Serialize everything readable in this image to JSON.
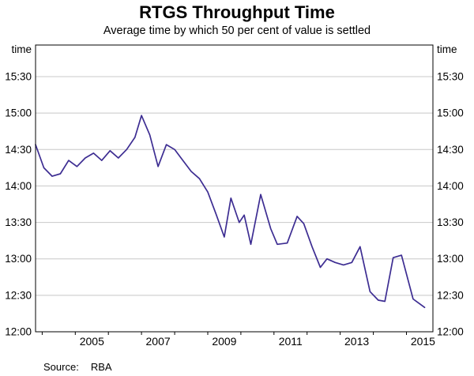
{
  "chart": {
    "title": "RTGS Throughput Time",
    "subtitle": "Average time by which 50 per cent of value is settled"
  },
  "source": {
    "label": "Source:",
    "value": "RBA"
  },
  "colors": {
    "line": "#3d2d92",
    "grid": "#c8c8c8",
    "axis": "#000000",
    "text": "#000000",
    "background": "#ffffff"
  },
  "chart_data": {
    "type": "line",
    "title": "RTGS Throughput Time",
    "subtitle": "Average time by which 50 per cent of value is settled",
    "xlabel": "",
    "ylabel": "time",
    "unit_label": "time",
    "legend": "none",
    "grid": true,
    "y_axis": {
      "min": "12:00",
      "max": "15:56",
      "tick_labels": [
        "15:30",
        "15:00",
        "14:30",
        "14:00",
        "13:30",
        "13:00",
        "12:30",
        "12:00"
      ],
      "label_sides": "both"
    },
    "x_axis": {
      "range": [
        2003.8,
        2015.8
      ],
      "tick_labels": [
        "2005",
        "2007",
        "2009",
        "2011",
        "2013",
        "2015"
      ],
      "tick_years": [
        2004,
        2005,
        2006,
        2007,
        2008,
        2009,
        2010,
        2011,
        2012,
        2013,
        2014,
        2015
      ]
    },
    "series": [
      {
        "name": "Average time by which 50 per cent of RTGS value is settled",
        "color": "#3d2d92",
        "points": [
          [
            2003.8,
            "14:34"
          ],
          [
            2004.05,
            "14:15"
          ],
          [
            2004.3,
            "14:08"
          ],
          [
            2004.55,
            "14:10"
          ],
          [
            2004.8,
            "14:21"
          ],
          [
            2005.05,
            "14:16"
          ],
          [
            2005.3,
            "14:23"
          ],
          [
            2005.55,
            "14:27"
          ],
          [
            2005.8,
            "14:21"
          ],
          [
            2006.05,
            "14:29"
          ],
          [
            2006.3,
            "14:23"
          ],
          [
            2006.55,
            "14:30"
          ],
          [
            2006.8,
            "14:40"
          ],
          [
            2007.0,
            "14:58"
          ],
          [
            2007.25,
            "14:42"
          ],
          [
            2007.5,
            "14:16"
          ],
          [
            2007.75,
            "14:34"
          ],
          [
            2008.0,
            "14:30"
          ],
          [
            2008.25,
            "14:21"
          ],
          [
            2008.5,
            "14:12"
          ],
          [
            2008.75,
            "14:06"
          ],
          [
            2009.0,
            "13:55"
          ],
          [
            2009.25,
            "13:37"
          ],
          [
            2009.5,
            "13:18"
          ],
          [
            2009.7,
            "13:50"
          ],
          [
            2009.95,
            "13:30"
          ],
          [
            2010.1,
            "13:36"
          ],
          [
            2010.3,
            "13:12"
          ],
          [
            2010.6,
            "13:53"
          ],
          [
            2010.9,
            "13:25"
          ],
          [
            2011.1,
            "13:12"
          ],
          [
            2011.4,
            "13:13"
          ],
          [
            2011.7,
            "13:35"
          ],
          [
            2011.9,
            "13:29"
          ],
          [
            2012.15,
            "13:10"
          ],
          [
            2012.4,
            "12:53"
          ],
          [
            2012.6,
            "13:00"
          ],
          [
            2012.85,
            "12:57"
          ],
          [
            2013.1,
            "12:55"
          ],
          [
            2013.35,
            "12:57"
          ],
          [
            2013.6,
            "13:10"
          ],
          [
            2013.9,
            "12:33"
          ],
          [
            2014.15,
            "12:26"
          ],
          [
            2014.35,
            "12:25"
          ],
          [
            2014.6,
            "13:01"
          ],
          [
            2014.85,
            "13:03"
          ],
          [
            2015.2,
            "12:27"
          ],
          [
            2015.55,
            "12:20"
          ]
        ]
      }
    ]
  }
}
